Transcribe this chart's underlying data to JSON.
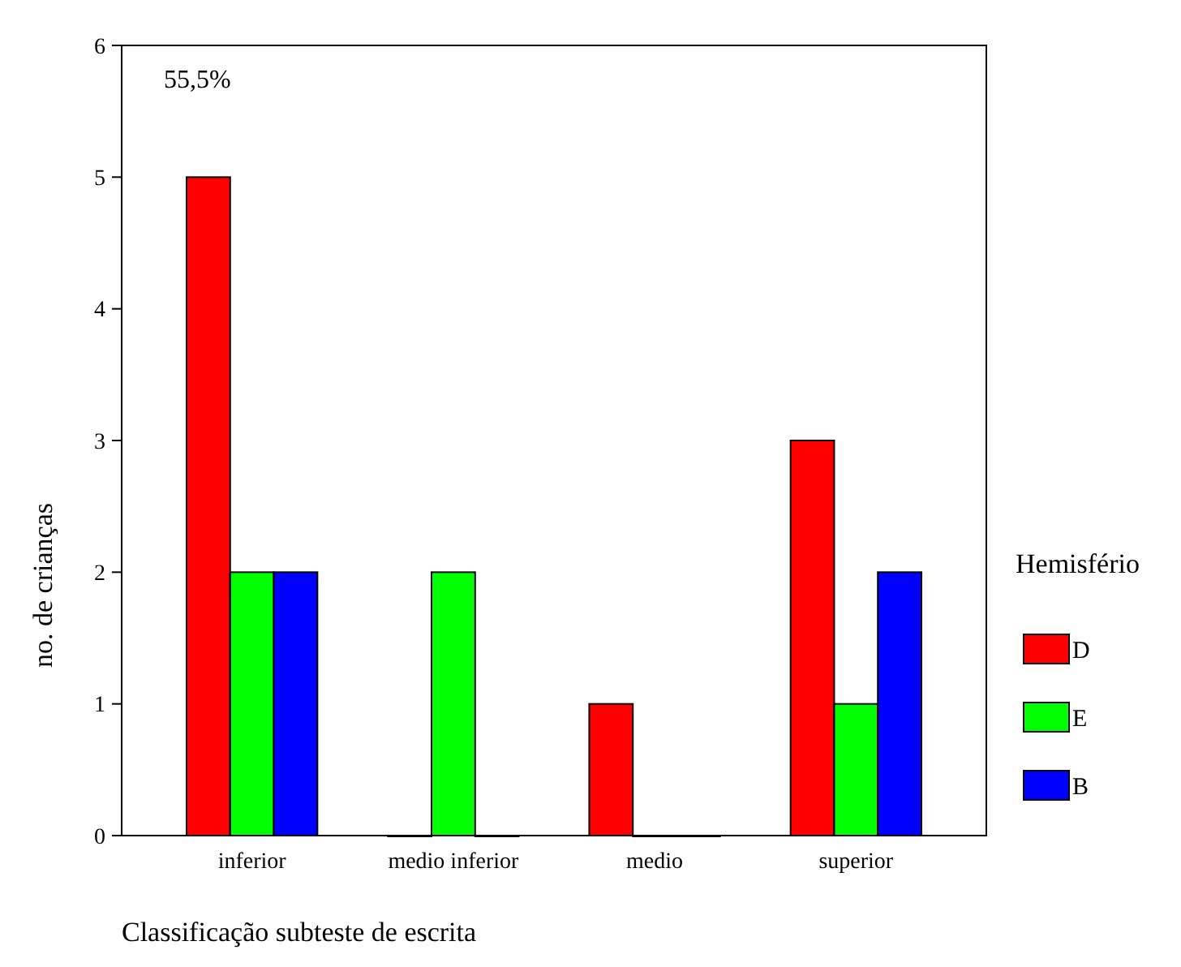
{
  "chart_data": {
    "type": "bar",
    "xlabel": "Classificação subteste de escrita",
    "ylabel": "no. de crianças",
    "legend_title": "Hemisfério",
    "categories": [
      "inferior",
      "medio inferior",
      "medio",
      "superior"
    ],
    "series": [
      {
        "name": "D",
        "color": "#ff0000",
        "values": [
          5,
          0,
          1,
          3
        ]
      },
      {
        "name": "E",
        "color": "#00ff00",
        "values": [
          2,
          2,
          0,
          1
        ]
      },
      {
        "name": "B",
        "color": "#0000ff",
        "values": [
          2,
          0,
          0,
          2
        ]
      }
    ],
    "ylim": [
      0,
      6
    ],
    "yticks": [
      0,
      1,
      2,
      3,
      4,
      5,
      6
    ],
    "grid": false,
    "legend": "right",
    "annotations": [
      "55,5%"
    ]
  }
}
